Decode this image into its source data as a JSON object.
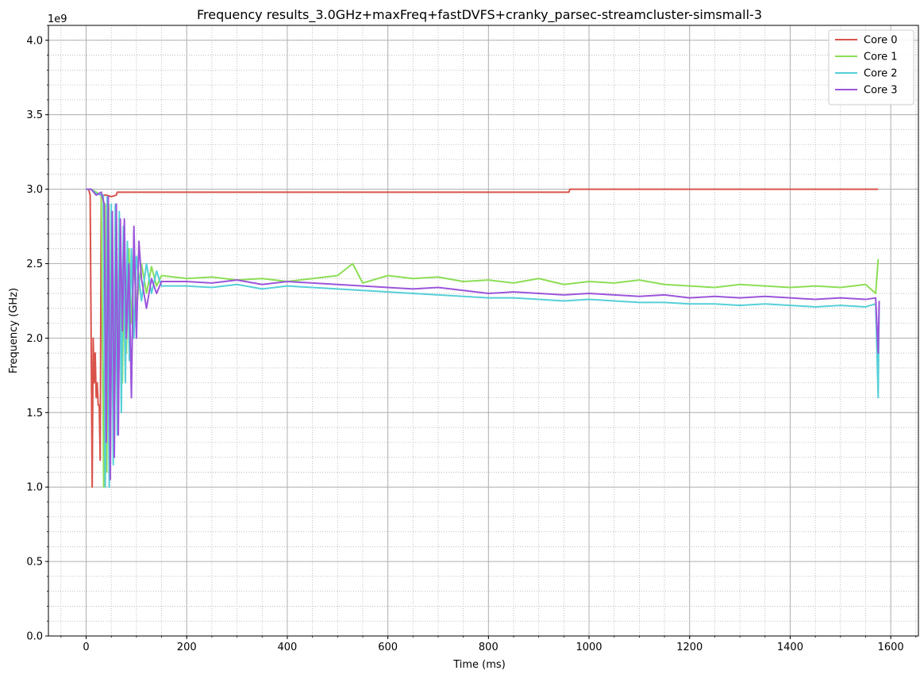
{
  "chart_data": {
    "type": "line",
    "title": "Frequency results_3.0GHz+maxFreq+fastDVFS+cranky_parsec-streamcluster-simsmall-3",
    "xlabel": "Time (ms)",
    "ylabel": "Frequency (GHz)",
    "y_offset_label": "1e9",
    "xlim": [
      -75,
      1655
    ],
    "ylim": [
      0,
      4100000000
    ],
    "x_ticks": [
      0,
      200,
      400,
      600,
      800,
      1000,
      1200,
      1400,
      1600
    ],
    "x_tick_labels": [
      "0",
      "200",
      "400",
      "600",
      "800",
      "1000",
      "1200",
      "1400",
      "1600"
    ],
    "y_ticks": [
      0,
      500000000,
      1000000000,
      1500000000,
      2000000000,
      2500000000,
      3000000000,
      3500000000,
      4000000000
    ],
    "y_tick_labels": [
      "0.0",
      "0.5",
      "1.0",
      "1.5",
      "2.0",
      "2.5",
      "3.0",
      "3.5",
      "4.0"
    ],
    "grid": "major and minor",
    "legend_position": "top-right",
    "series": [
      {
        "name": "Core 0",
        "color": "#d9534a",
        "x": [
          0,
          5,
          8,
          12,
          14,
          16,
          18,
          20,
          22,
          24,
          26,
          28,
          30,
          34,
          40,
          50,
          60,
          62,
          65,
          960,
          962,
          1575
        ],
        "y": [
          3000000000,
          3000000000,
          2960000000,
          1000000000,
          2000000000,
          1700000000,
          1900000000,
          1600000000,
          1700000000,
          1550000000,
          1550000000,
          1180000000,
          2960000000,
          2960000000,
          2960000000,
          2950000000,
          2960000000,
          2980000000,
          2980000000,
          2980000000,
          3000000000,
          3000000000
        ]
      },
      {
        "name": "Core 1",
        "color": "#8cde55",
        "x": [
          0,
          10,
          20,
          30,
          35,
          38,
          41,
          45,
          48,
          52,
          56,
          60,
          64,
          68,
          72,
          76,
          80,
          85,
          90,
          95,
          100,
          110,
          120,
          130,
          140,
          150,
          200,
          250,
          300,
          350,
          400,
          450,
          500,
          530,
          550,
          600,
          650,
          700,
          750,
          800,
          850,
          900,
          950,
          1000,
          1050,
          1100,
          1150,
          1200,
          1250,
          1300,
          1350,
          1400,
          1450,
          1500,
          1550,
          1570,
          1575
        ],
        "y": [
          3000000000,
          3000000000,
          2980000000,
          2960000000,
          1000000000,
          2900000000,
          1100000000,
          2900000000,
          1150000000,
          2850000000,
          1300000000,
          2800000000,
          1500000000,
          2700000000,
          1700000000,
          2650000000,
          1900000000,
          2600000000,
          2100000000,
          2550000000,
          2200000000,
          2500000000,
          2300000000,
          2480000000,
          2350000000,
          2420000000,
          2400000000,
          2410000000,
          2390000000,
          2400000000,
          2380000000,
          2400000000,
          2420000000,
          2500000000,
          2370000000,
          2420000000,
          2400000000,
          2410000000,
          2380000000,
          2390000000,
          2370000000,
          2400000000,
          2360000000,
          2380000000,
          2370000000,
          2390000000,
          2360000000,
          2350000000,
          2340000000,
          2360000000,
          2350000000,
          2340000000,
          2350000000,
          2340000000,
          2360000000,
          2300000000,
          2530000000
        ]
      },
      {
        "name": "Core 2",
        "color": "#56cfd8",
        "x": [
          0,
          10,
          20,
          30,
          34,
          38,
          42,
          46,
          50,
          54,
          58,
          62,
          66,
          70,
          74,
          78,
          82,
          86,
          90,
          95,
          100,
          110,
          120,
          130,
          140,
          150,
          200,
          250,
          300,
          350,
          400,
          450,
          500,
          550,
          600,
          650,
          700,
          750,
          800,
          850,
          900,
          950,
          1000,
          1050,
          1100,
          1150,
          1200,
          1250,
          1300,
          1350,
          1400,
          1450,
          1500,
          1550,
          1570,
          1575,
          1577
        ],
        "y": [
          3000000000,
          3000000000,
          2970000000,
          2960000000,
          2960000000,
          1000000000,
          2950000000,
          1000000000,
          2900000000,
          1150000000,
          2900000000,
          1350000000,
          2850000000,
          1500000000,
          2750000000,
          1700000000,
          2650000000,
          1850000000,
          2600000000,
          2000000000,
          2550000000,
          2250000000,
          2500000000,
          2300000000,
          2450000000,
          2350000000,
          2350000000,
          2340000000,
          2360000000,
          2330000000,
          2350000000,
          2340000000,
          2330000000,
          2320000000,
          2310000000,
          2300000000,
          2290000000,
          2280000000,
          2270000000,
          2270000000,
          2260000000,
          2250000000,
          2260000000,
          2250000000,
          2240000000,
          2240000000,
          2230000000,
          2230000000,
          2220000000,
          2230000000,
          2220000000,
          2210000000,
          2220000000,
          2210000000,
          2230000000,
          1600000000,
          2250000000
        ]
      },
      {
        "name": "Core 3",
        "color": "#9b55db",
        "x": [
          0,
          10,
          20,
          30,
          36,
          40,
          44,
          48,
          52,
          56,
          60,
          64,
          68,
          72,
          76,
          80,
          85,
          90,
          95,
          100,
          105,
          110,
          120,
          130,
          140,
          150,
          200,
          250,
          300,
          350,
          400,
          450,
          500,
          550,
          600,
          650,
          700,
          750,
          800,
          850,
          900,
          950,
          1000,
          1050,
          1100,
          1150,
          1200,
          1250,
          1300,
          1350,
          1400,
          1450,
          1500,
          1550,
          1570,
          1575,
          1577
        ],
        "y": [
          3000000000,
          3000000000,
          2960000000,
          2980000000,
          2900000000,
          1300000000,
          2950000000,
          1050000000,
          2850000000,
          1200000000,
          2900000000,
          1350000000,
          2800000000,
          2050000000,
          2800000000,
          2000000000,
          2500000000,
          1600000000,
          2750000000,
          2000000000,
          2650000000,
          2400000000,
          2200000000,
          2400000000,
          2300000000,
          2380000000,
          2380000000,
          2370000000,
          2390000000,
          2360000000,
          2380000000,
          2370000000,
          2360000000,
          2350000000,
          2340000000,
          2330000000,
          2340000000,
          2320000000,
          2300000000,
          2310000000,
          2300000000,
          2290000000,
          2300000000,
          2290000000,
          2280000000,
          2290000000,
          2270000000,
          2280000000,
          2270000000,
          2280000000,
          2270000000,
          2260000000,
          2270000000,
          2260000000,
          2270000000,
          1900000000,
          2250000000
        ]
      }
    ]
  }
}
